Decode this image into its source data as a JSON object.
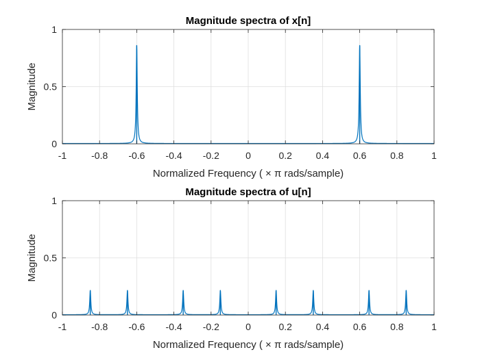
{
  "chart_data": [
    {
      "type": "line",
      "title": "Magnitude spectra of x[n]",
      "xlabel": "Normalized Frequency ( × π rads/sample)",
      "ylabel": "Magnitude",
      "xlim": [
        -1,
        1
      ],
      "ylim": [
        0,
        1
      ],
      "xticks": [
        -1,
        -0.8,
        -0.6,
        -0.4,
        -0.2,
        0,
        0.2,
        0.4,
        0.6,
        0.8,
        1
      ],
      "xtick_labels": [
        "-1",
        "-0.8",
        "-0.6",
        "-0.4",
        "-0.2",
        "0",
        "0.2",
        "0.4",
        "0.6",
        "0.8",
        "1"
      ],
      "yticks": [
        0,
        0.5,
        1
      ],
      "ytick_labels": [
        "0",
        "0.5",
        "1"
      ],
      "grid": true,
      "series": [
        {
          "color": "#0072BD",
          "peaks": [
            {
              "x": -0.6,
              "y": 0.86
            },
            {
              "x": 0.6,
              "y": 0.86
            }
          ]
        }
      ]
    },
    {
      "type": "line",
      "title": "Magnitude spectra of u[n]",
      "xlabel": "Normalized Frequency ( × π rads/sample)",
      "ylabel": "Magnitude",
      "xlim": [
        -1,
        1
      ],
      "ylim": [
        0,
        1
      ],
      "xticks": [
        -1,
        -0.8,
        -0.6,
        -0.4,
        -0.2,
        0,
        0.2,
        0.4,
        0.6,
        0.8,
        1
      ],
      "xtick_labels": [
        "-1",
        "-0.8",
        "-0.6",
        "-0.4",
        "-0.2",
        "0",
        "0.2",
        "0.4",
        "0.6",
        "0.8",
        "1"
      ],
      "yticks": [
        0,
        0.5,
        1
      ],
      "ytick_labels": [
        "0",
        "0.5",
        "1"
      ],
      "grid": true,
      "series": [
        {
          "color": "#0072BD",
          "peaks": [
            {
              "x": -0.85,
              "y": 0.215
            },
            {
              "x": -0.65,
              "y": 0.215
            },
            {
              "x": -0.35,
              "y": 0.215
            },
            {
              "x": -0.15,
              "y": 0.215
            },
            {
              "x": 0.15,
              "y": 0.215
            },
            {
              "x": 0.35,
              "y": 0.215
            },
            {
              "x": 0.65,
              "y": 0.215
            },
            {
              "x": 0.85,
              "y": 0.215
            }
          ]
        }
      ]
    }
  ]
}
